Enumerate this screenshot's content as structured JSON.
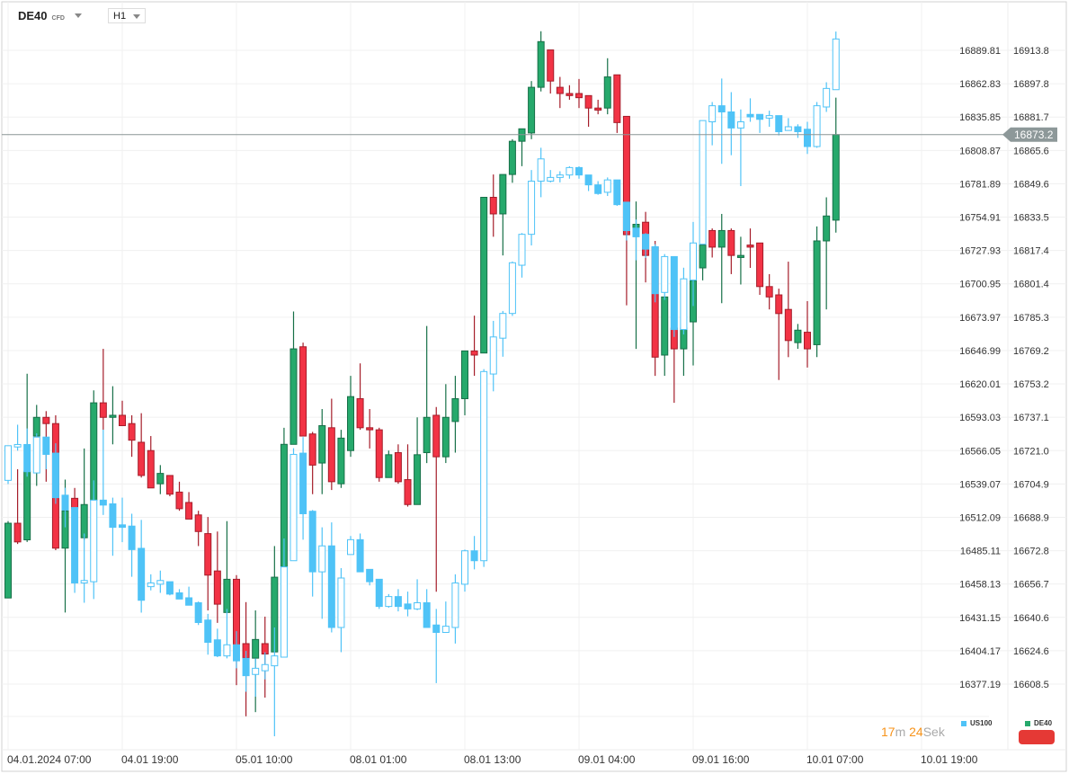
{
  "header": {
    "symbol": "DE40",
    "symbol_type": "CFD",
    "timeframe": "H1"
  },
  "countdown": {
    "minutes": "17",
    "minutes_unit": "m",
    "seconds": "24",
    "seconds_unit": "Sek"
  },
  "legend": [
    {
      "name": "US100",
      "color": "#4fc3f7"
    },
    {
      "name": "DE40",
      "color": "#26a96c"
    }
  ],
  "colors": {
    "up": "#26a96c",
    "down": "#f23345",
    "us100": "#4fc3f7",
    "price_line": "#8a9596",
    "badge": "#e53935",
    "countdown": "#f7931a"
  },
  "chart_data": {
    "type": "candlestick",
    "x_ticks": [
      {
        "date": "04.01.2024",
        "time": "07:00"
      },
      {
        "date": "04.01",
        "time": "19:00"
      },
      {
        "date": "05.01",
        "time": "10:00"
      },
      {
        "date": "08.01",
        "time": "01:00"
      },
      {
        "date": "08.01",
        "time": "13:00"
      },
      {
        "date": "09.01",
        "time": "04:00"
      },
      {
        "date": "09.01",
        "time": "16:00"
      },
      {
        "date": "10.01",
        "time": "07:00"
      },
      {
        "date": "10.01",
        "time": "19:00"
      }
    ],
    "left_axis_ticks": [
      "16889.81",
      "16862.83",
      "16835.85",
      "16808.87",
      "16781.89",
      "16754.91",
      "16727.93",
      "16700.95",
      "16673.97",
      "16646.99",
      "16620.01",
      "16593.03",
      "16566.05",
      "16539.07",
      "16512.09",
      "16485.11",
      "16458.13",
      "16431.15",
      "16404.17",
      "16377.19"
    ],
    "right_axis_ticks": [
      "16913.8",
      "16897.8",
      "16881.7",
      "16865.6",
      "16849.6",
      "16833.5",
      "16817.4",
      "16801.4",
      "16785.3",
      "16769.2",
      "16753.2",
      "16737.1",
      "16721.0",
      "16704.9",
      "16688.9",
      "16672.8",
      "16656.7",
      "16640.6",
      "16624.6",
      "16608.5"
    ],
    "current_price": "16873.2",
    "grid": true,
    "series": [
      {
        "name": "DE40",
        "axis": "right",
        "style": "green-red",
        "ohlc": [
          [
            16650,
            16687,
            16650,
            16686
          ],
          [
            16686,
            16712,
            16676,
            16677
          ],
          [
            16678,
            16758,
            16677,
            16711
          ],
          [
            16728,
            16743,
            16704,
            16737
          ],
          [
            16737,
            16740,
            16706,
            16734
          ],
          [
            16734,
            16738,
            16673,
            16674
          ],
          [
            16674,
            16707,
            16643,
            16692
          ],
          [
            16698,
            16703,
            16692,
            16693
          ],
          [
            16679,
            16722,
            16678,
            16695
          ],
          [
            16697,
            16750,
            16696,
            16744
          ],
          [
            16744,
            16770,
            16731,
            16737
          ],
          [
            16737,
            16752,
            16724,
            16738
          ],
          [
            16738,
            16745,
            16733,
            16733
          ],
          [
            16734,
            16738,
            16718,
            16726
          ],
          [
            16725,
            16739,
            16708,
            16709
          ],
          [
            16721,
            16728,
            16703,
            16703
          ],
          [
            16705,
            16714,
            16700,
            16710
          ],
          [
            16709,
            16709,
            16699,
            16700
          ],
          [
            16701,
            16706,
            16692,
            16693
          ],
          [
            16696,
            16701,
            16688,
            16688
          ],
          [
            16690,
            16692,
            16675,
            16682
          ],
          [
            16681,
            16689,
            16644,
            16661
          ],
          [
            16663,
            16682,
            16638,
            16647
          ],
          [
            16643,
            16687,
            16643,
            16659
          ],
          [
            16659,
            16661,
            16608,
            16627
          ],
          [
            16628,
            16648,
            16593,
            16621
          ],
          [
            16621,
            16644,
            16595,
            16630
          ],
          [
            16628,
            16641,
            16602,
            16623
          ],
          [
            16624,
            16675,
            16624,
            16660
          ],
          [
            16665,
            16732,
            16665,
            16724
          ],
          [
            16724,
            16788,
            16724,
            16770
          ],
          [
            16771,
            16773,
            16728,
            16728
          ],
          [
            16729,
            16730,
            16700,
            16714
          ],
          [
            16715,
            16741,
            16700,
            16733
          ],
          [
            16732,
            16746,
            16702,
            16706
          ],
          [
            16705,
            16731,
            16703,
            16727
          ],
          [
            16721,
            16757,
            16718,
            16747
          ],
          [
            16746,
            16763,
            16731,
            16732
          ],
          [
            16732,
            16741,
            16722,
            16731
          ],
          [
            16731,
            16732,
            16706,
            16708
          ],
          [
            16708,
            16721,
            16708,
            16719
          ],
          [
            16720,
            16724,
            16705,
            16706
          ],
          [
            16707,
            16724,
            16694,
            16695
          ],
          [
            16695,
            16737,
            16695,
            16719
          ],
          [
            16720,
            16781,
            16715,
            16737
          ],
          [
            16738,
            16742,
            16653,
            16718
          ],
          [
            16718,
            16753,
            16715,
            16737
          ],
          [
            16735,
            16757,
            16720,
            16746
          ],
          [
            16746,
            16769,
            16738,
            16769
          ],
          [
            16769,
            16786,
            16757,
            16767
          ],
          [
            16768,
            16843,
            16768,
            16843
          ],
          [
            16843,
            16854,
            16824,
            16835
          ],
          [
            16835,
            16854,
            16815,
            16854
          ],
          [
            16854,
            16871,
            16850,
            16870
          ],
          [
            16870,
            16876,
            16858,
            16876
          ],
          [
            16874,
            16899,
            16871,
            16896
          ],
          [
            16896,
            16923,
            16894,
            16918
          ],
          [
            16914,
            16914,
            16893,
            16899
          ],
          [
            16896,
            16901,
            16886,
            16893
          ],
          [
            16893,
            16897,
            16890,
            16892
          ],
          [
            16893,
            16900,
            16886,
            16891
          ],
          [
            16892,
            16892,
            16877,
            16886
          ],
          [
            16886,
            16890,
            16883,
            16885
          ],
          [
            16886,
            16910,
            16883,
            16901
          ],
          [
            16902,
            16902,
            16874,
            16879
          ],
          [
            16882,
            16882,
            16791,
            16825
          ],
          [
            16828,
            16841,
            16770,
            16830
          ],
          [
            16831,
            16836,
            16802,
            16815
          ],
          [
            16819,
            16822,
            16757,
            16766
          ],
          [
            16767,
            16795,
            16757,
            16795
          ],
          [
            16780,
            16780,
            16744,
            16770
          ],
          [
            16770,
            16780,
            16757,
            16780
          ],
          [
            16783,
            16803,
            16762,
            16803
          ],
          [
            16809,
            16820,
            16803,
            16820
          ],
          [
            16827,
            16828,
            16814,
            16819
          ],
          [
            16819,
            16835,
            16792,
            16827
          ],
          [
            16827,
            16828,
            16806,
            16815
          ],
          [
            16814,
            16824,
            16801,
            16815
          ],
          [
            16820,
            16828,
            16809,
            16819
          ],
          [
            16821,
            16821,
            16796,
            16800
          ],
          [
            16800,
            16806,
            16789,
            16795
          ],
          [
            16796,
            16799,
            16755,
            16787
          ],
          [
            16789,
            16812,
            16766,
            16774
          ],
          [
            16773,
            16782,
            16770,
            16779
          ],
          [
            16778,
            16793,
            16761,
            16770
          ],
          [
            16772,
            16829,
            16766,
            16822
          ],
          [
            16822,
            16843,
            16789,
            16834
          ],
          [
            16832,
            16891,
            16826,
            16873.2
          ]
        ]
      },
      {
        "name": "US100",
        "axis": "left",
        "style": "blue-hollow",
        "ohlc": [
          [
            16542,
            16570,
            16539,
            16570
          ],
          [
            16569,
            16587,
            16566,
            16571
          ],
          [
            16571,
            16584,
            16545,
            16549
          ],
          [
            16548,
            16580,
            16548,
            16577
          ],
          [
            16577,
            16577,
            16551,
            16563
          ],
          [
            16564,
            16572,
            16523,
            16528
          ],
          [
            16530,
            16536,
            16504,
            16518
          ],
          [
            16520,
            16520,
            16451,
            16459
          ],
          [
            16459,
            16499,
            16443,
            16461
          ],
          [
            16460,
            16542,
            16446,
            16526
          ],
          [
            16526,
            16583,
            16514,
            16522
          ],
          [
            16523,
            16528,
            16481,
            16504
          ],
          [
            16506,
            16528,
            16492,
            16504
          ],
          [
            16505,
            16515,
            16464,
            16486
          ],
          [
            16487,
            16510,
            16435,
            16445
          ],
          [
            16456,
            16466,
            16453,
            16459
          ],
          [
            16458,
            16469,
            16451,
            16461
          ],
          [
            16460,
            16460,
            16449,
            16450
          ],
          [
            16451,
            16454,
            16446,
            16446
          ],
          [
            16447,
            16456,
            16441,
            16441
          ],
          [
            16443,
            16444,
            16425,
            16427
          ],
          [
            16429,
            16434,
            16401,
            16411
          ],
          [
            16413,
            16422,
            16399,
            16400
          ],
          [
            16400,
            16438,
            16398,
            16409
          ],
          [
            16409,
            16420,
            16390,
            16396
          ],
          [
            16398,
            16404,
            16371,
            16384
          ],
          [
            16385,
            16398,
            16367,
            16390
          ],
          [
            16388,
            16403,
            16381,
            16393
          ],
          [
            16392,
            16423,
            16335,
            16400
          ],
          [
            16399,
            16495,
            16399,
            16472
          ],
          [
            16477,
            16568,
            16477,
            16563
          ],
          [
            16564,
            16577,
            16494,
            16515
          ],
          [
            16517,
            16518,
            16448,
            16468
          ],
          [
            16468,
            16504,
            16430,
            16489
          ],
          [
            16489,
            16508,
            16419,
            16423
          ],
          [
            16423,
            16471,
            16403,
            16463
          ],
          [
            16482,
            16497,
            16482,
            16494
          ],
          [
            16494,
            16499,
            16468,
            16468
          ],
          [
            16470,
            16470,
            16457,
            16460
          ],
          [
            16462,
            16462,
            16438,
            16440
          ],
          [
            16440,
            16450,
            16439,
            16448
          ],
          [
            16448,
            16454,
            16436,
            16440
          ],
          [
            16442,
            16452,
            16432,
            16438
          ],
          [
            16438,
            16462,
            16437,
            16443
          ],
          [
            16443,
            16454,
            16423,
            16423
          ],
          [
            16425,
            16438,
            16378,
            16419
          ],
          [
            16419,
            16444,
            16419,
            16424
          ],
          [
            16423,
            16466,
            16410,
            16459
          ],
          [
            16458,
            16486,
            16452,
            16485
          ],
          [
            16485,
            16497,
            16470,
            16477
          ],
          [
            16477,
            16632,
            16472,
            16630
          ],
          [
            16628,
            16671,
            16614,
            16658
          ],
          [
            16657,
            16679,
            16642,
            16677
          ],
          [
            16677,
            16719,
            16675,
            16718
          ],
          [
            16716,
            16742,
            16706,
            16741
          ],
          [
            16741,
            16793,
            16732,
            16784
          ],
          [
            16784,
            16811,
            16771,
            16802
          ],
          [
            16784,
            16793,
            16783,
            16787
          ],
          [
            16787,
            16792,
            16783,
            16789
          ],
          [
            16789,
            16796,
            16786,
            16795
          ],
          [
            16795,
            16796,
            16786,
            16789
          ],
          [
            16789,
            16789,
            16776,
            16781
          ],
          [
            16781,
            16784,
            16773,
            16774
          ],
          [
            16775,
            16787,
            16772,
            16785
          ],
          [
            16785,
            16785,
            16764,
            16765
          ],
          [
            16767,
            16767,
            16736,
            16744
          ],
          [
            16746,
            16753,
            16720,
            16739
          ],
          [
            16741,
            16742,
            16722,
            16729
          ],
          [
            16731,
            16733,
            16686,
            16693
          ],
          [
            16694,
            16725,
            16688,
            16723
          ],
          [
            16723,
            16723,
            16658,
            16664
          ],
          [
            16664,
            16714,
            16660,
            16705
          ],
          [
            16704,
            16751,
            16683,
            16734
          ],
          [
            16733,
            16833,
            16733,
            16833
          ],
          [
            16832,
            16848,
            16813,
            16845
          ],
          [
            16845,
            16867,
            16798,
            16840
          ],
          [
            16840,
            16856,
            16805,
            16827
          ],
          [
            16827,
            16842,
            16780,
            16832
          ],
          [
            16838,
            16851,
            16832,
            16836
          ],
          [
            16838,
            16838,
            16823,
            16834
          ],
          [
            16835,
            16841,
            16828,
            16837
          ],
          [
            16837,
            16837,
            16821,
            16824
          ],
          [
            16825,
            16835,
            16825,
            16828
          ],
          [
            16828,
            16830,
            16819,
            16824
          ],
          [
            16826,
            16832,
            16806,
            16812
          ],
          [
            16812,
            16848,
            16811,
            16845
          ],
          [
            16844,
            16864,
            16840,
            16859
          ],
          [
            16858,
            16905,
            16858,
            16899
          ]
        ]
      }
    ]
  }
}
